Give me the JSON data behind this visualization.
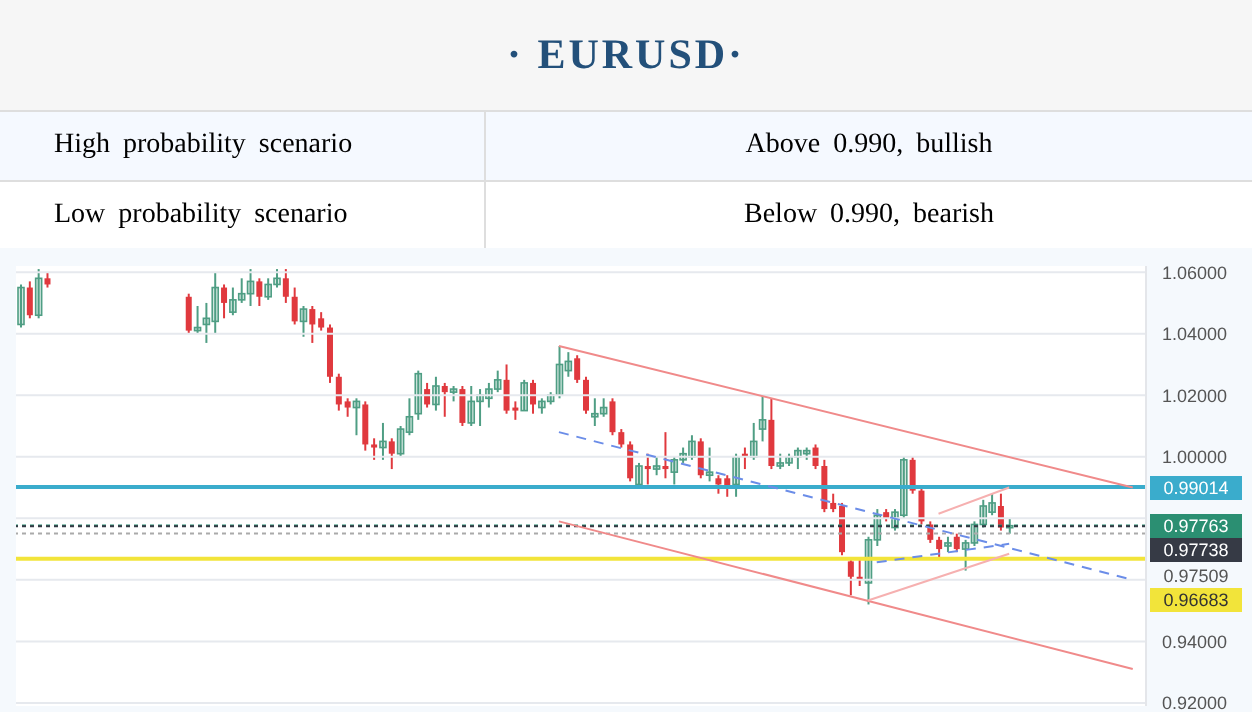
{
  "chart_data": {
    "type": "candlestick",
    "title": "· EURUSD·",
    "annotations": [
      "High probability scenario",
      "Above 0.990, bullish",
      "Low probability scenario",
      "Below 0.990, bearish"
    ],
    "categories": [
      null,
      null,
      null,
      null,
      null,
      null,
      null,
      null,
      null,
      null,
      null,
      null,
      null,
      null,
      null,
      null,
      null,
      null,
      null,
      null,
      null,
      null,
      null,
      null,
      null,
      null,
      null,
      null,
      null,
      null,
      null,
      null,
      null,
      null,
      null,
      null,
      null,
      null,
      null,
      null,
      null,
      null,
      null,
      null,
      null,
      null,
      null,
      null,
      null,
      null,
      null,
      null,
      null,
      null,
      null,
      null,
      null,
      null,
      null,
      null,
      null,
      null,
      null,
      null,
      null,
      null,
      null,
      null,
      null,
      null,
      null,
      null,
      null,
      null,
      null,
      null,
      null,
      null,
      null,
      null,
      null,
      null,
      null,
      null,
      null,
      null,
      null,
      null,
      null,
      null,
      null,
      null,
      null,
      null,
      null,
      null,
      null,
      null,
      null,
      null,
      null,
      null,
      null,
      null,
      null,
      null,
      null,
      null,
      null,
      null,
      null,
      null,
      null,
      null,
      null,
      null,
      null,
      null,
      null,
      null,
      null,
      null,
      null,
      null,
      null,
      null,
      null,
      null
    ],
    "colors": [
      "#4f9e84",
      "#e0393e",
      "#4f9e84",
      "#e0393e",
      null,
      null,
      null,
      null,
      null,
      null,
      null,
      null,
      null,
      null,
      null,
      null,
      null,
      null,
      null,
      "#e0393e",
      "#4f9e84",
      "#4f9e84",
      "#4f9e84",
      "#e0393e",
      "#4f9e84",
      "#4f9e84",
      "#4f9e84",
      "#e0393e",
      "#4f9e84",
      "#4f9e84",
      "#e0393e",
      "#e0393e",
      "#4f9e84",
      "#e0393e",
      "#e0393e",
      "#e0393e",
      "#e0393e",
      "#e0393e",
      "#4f9e84",
      "#e0393e",
      "#e0393e",
      "#4f9e84",
      "#e0393e",
      "#4f9e84",
      "#4f9e84",
      "#4f9e84",
      "#e0393e",
      "#4f9e84",
      "#e0393e",
      "#4f9e84",
      "#e0393e",
      "#4f9e84",
      "#4f9e84",
      "#4f9e84",
      "#4f9e84",
      "#e0393e",
      "#e0393e",
      "#4f9e84",
      "#e0393e",
      "#4f9e84",
      "#4f9e84",
      "#4f9e84",
      "#4f9e84",
      "#e0393e",
      "#e0393e",
      "#4f9e84",
      "#4f9e84",
      "#e0393e",
      "#e0393e",
      "#e0393e",
      "#4f9e84",
      "#e0393e",
      "#4f9e84",
      "#e0393e",
      "#4f9e84",
      "#4f9e84",
      "#4f9e84",
      "#e0393e",
      "#4f9e84",
      "#e0393e",
      "#e0393e",
      "#4f9e84",
      "#e0393e",
      "#4f9e84",
      "#4f9e84",
      "#e0393e",
      "#4f9e84",
      "#4f9e84",
      "#4f9e84",
      "#4f9e84",
      "#e0393e",
      "#e0393e",
      "#e0393e",
      "#e0393e",
      "#e0393e",
      "#e0393e",
      "#4f9e84",
      "#4f9e84",
      "#e0393e",
      "#4f9e84",
      "#4f9e84",
      "#e0393e",
      "#e0393e",
      "#e0393e",
      "#e0393e",
      "#4f9e84",
      "#e0393e",
      "#4f9e84",
      "#4f9e84",
      "#4f9e84",
      "#4f9e84",
      "#e0393e",
      "#4f9e84",
      null,
      null,
      null,
      null,
      null,
      null,
      null,
      null,
      null,
      null,
      null,
      null,
      null,
      null,
      null
    ],
    "ohlc": [
      [
        1.043,
        1.056,
        1.042,
        1.055
      ],
      [
        1.055,
        1.057,
        1.045,
        1.046
      ],
      [
        1.046,
        1.061,
        1.045,
        1.058
      ],
      [
        1.058,
        1.06,
        1.055,
        1.056
      ],
      null,
      null,
      null,
      null,
      null,
      null,
      null,
      null,
      null,
      null,
      null,
      null,
      null,
      null,
      null,
      [
        1.052,
        1.053,
        1.04,
        1.041
      ],
      [
        1.041,
        1.049,
        1.04,
        1.042
      ],
      [
        1.043,
        1.05,
        1.037,
        1.045
      ],
      [
        1.044,
        1.06,
        1.04,
        1.055
      ],
      [
        1.055,
        1.056,
        1.045,
        1.05
      ],
      [
        1.047,
        1.055,
        1.046,
        1.051
      ],
      [
        1.051,
        1.058,
        1.05,
        1.053
      ],
      [
        1.053,
        1.061,
        1.049,
        1.057
      ],
      [
        1.057,
        1.058,
        1.049,
        1.052
      ],
      [
        1.052,
        1.058,
        1.051,
        1.056
      ],
      [
        1.056,
        1.061,
        1.055,
        1.058
      ],
      [
        1.058,
        1.061,
        1.05,
        1.052
      ],
      [
        1.052,
        1.055,
        1.043,
        1.044
      ],
      [
        1.044,
        1.049,
        1.039,
        1.048
      ],
      [
        1.048,
        1.049,
        1.037,
        1.043
      ],
      [
        1.045,
        1.047,
        1.041,
        1.042
      ],
      [
        1.042,
        1.043,
        1.024,
        1.026
      ],
      [
        1.026,
        1.027,
        1.015,
        1.017
      ],
      [
        1.018,
        1.019,
        1.013,
        1.016
      ],
      [
        1.016,
        1.019,
        1.007,
        1.018
      ],
      [
        1.017,
        1.018,
        1.002,
        1.004
      ],
      [
        1.004,
        1.006,
        0.999,
        1.003
      ],
      [
        1.003,
        1.011,
        0.999,
        1.005
      ],
      [
        1.005,
        1.006,
        0.996,
        1.001
      ],
      [
        1.001,
        1.01,
        1.0,
        1.009
      ],
      [
        1.008,
        1.019,
        1.007,
        1.013
      ],
      [
        1.014,
        1.028,
        1.012,
        1.027
      ],
      [
        1.022,
        1.024,
        1.016,
        1.017
      ],
      [
        1.017,
        1.026,
        1.015,
        1.023
      ],
      [
        1.023,
        1.024,
        1.013,
        1.021
      ],
      [
        1.021,
        1.023,
        1.018,
        1.022
      ],
      [
        1.022,
        1.023,
        1.01,
        1.011
      ],
      [
        1.011,
        1.023,
        1.01,
        1.018
      ],
      [
        1.018,
        1.022,
        1.01,
        1.02
      ],
      [
        1.019,
        1.024,
        1.016,
        1.022
      ],
      [
        1.022,
        1.028,
        1.021,
        1.025
      ],
      [
        1.025,
        1.03,
        1.014,
        1.015
      ],
      [
        1.016,
        1.018,
        1.012,
        1.015
      ],
      [
        1.015,
        1.025,
        1.015,
        1.024
      ],
      [
        1.024,
        1.025,
        1.014,
        1.017
      ],
      [
        1.016,
        1.019,
        1.014,
        1.018
      ],
      [
        1.018,
        1.021,
        1.017,
        1.02
      ],
      [
        1.02,
        1.036,
        1.019,
        1.03
      ],
      [
        1.028,
        1.034,
        1.026,
        1.031
      ],
      [
        1.032,
        1.033,
        1.024,
        1.025
      ],
      [
        1.025,
        1.026,
        1.014,
        1.015
      ],
      [
        1.013,
        1.019,
        1.01,
        1.014
      ],
      [
        1.014,
        1.019,
        1.013,
        1.016
      ],
      [
        1.018,
        1.019,
        1.007,
        1.008
      ],
      [
        1.008,
        1.009,
        1.003,
        1.004
      ],
      [
        1.004,
        1.005,
        0.992,
        0.993
      ],
      [
        0.991,
        0.998,
        0.99,
        0.997
      ],
      [
        0.997,
        1.001,
        0.991,
        0.996
      ],
      [
        0.996,
        1.0,
        0.994,
        0.997
      ],
      [
        0.997,
        1.008,
        0.993,
        0.996
      ],
      [
        0.995,
        1.0,
        0.991,
        0.999
      ],
      [
        0.999,
        1.003,
        0.998,
        1.001
      ],
      [
        1.0,
        1.007,
        0.999,
        1.005
      ],
      [
        1.005,
        1.006,
        0.993,
        0.994
      ],
      [
        0.994,
        1.003,
        0.992,
        0.995
      ],
      [
        0.993,
        0.994,
        0.988,
        0.991
      ],
      [
        0.993,
        0.994,
        0.987,
        0.99
      ],
      [
        0.991,
        1.001,
        0.987,
        1.0
      ],
      [
        1.001,
        1.003,
        0.996,
        1.0
      ],
      [
        1.0,
        1.011,
        0.999,
        1.005
      ],
      [
        1.009,
        1.02,
        1.005,
        1.012
      ],
      [
        1.012,
        1.019,
        0.996,
        0.997
      ],
      [
        0.997,
        1.001,
        0.996,
        0.998
      ],
      [
        0.998,
        1.001,
        0.997,
        1.0
      ],
      [
        1.0,
        1.003,
        0.996,
        1.002
      ],
      [
        1.001,
        1.003,
        0.999,
        1.002
      ],
      [
        1.003,
        1.004,
        0.996,
        0.997
      ],
      [
        0.997,
        0.999,
        0.982,
        0.983
      ],
      [
        0.985,
        0.988,
        0.982,
        0.983
      ],
      [
        0.984,
        0.985,
        0.968,
        0.969
      ],
      [
        0.966,
        0.967,
        0.955,
        0.961
      ],
      [
        0.961,
        0.967,
        0.958,
        0.96
      ],
      [
        0.959,
        0.974,
        0.952,
        0.973
      ],
      [
        0.973,
        0.983,
        0.971,
        0.981
      ],
      [
        0.982,
        0.983,
        0.979,
        0.98
      ],
      [
        0.977,
        0.983,
        0.976,
        0.982
      ],
      [
        0.981,
        1.0,
        0.98,
        0.999
      ],
      [
        0.999,
        1.0,
        0.988,
        0.989
      ],
      [
        0.989,
        0.99,
        0.978,
        0.979
      ],
      [
        0.978,
        0.979,
        0.972,
        0.973
      ],
      [
        0.973,
        0.974,
        0.967,
        0.97
      ],
      [
        0.971,
        0.974,
        0.969,
        0.972
      ],
      [
        0.974,
        0.975,
        0.969,
        0.97
      ],
      [
        0.97,
        0.973,
        0.963,
        0.972
      ],
      [
        0.972,
        0.979,
        0.971,
        0.978
      ],
      [
        0.978,
        0.986,
        0.977,
        0.984
      ],
      [
        0.982,
        0.988,
        0.981,
        0.985
      ],
      [
        0.984,
        0.988,
        0.976,
        0.977
      ],
      [
        0.977,
        0.98,
        0.975,
        0.9776
      ],
      null,
      null,
      null,
      null,
      null,
      null,
      null,
      null,
      null,
      null,
      null,
      null,
      null,
      null,
      null
    ],
    "series": [
      {
        "type": "line",
        "color": "#f08a8a",
        "line_style": "solid",
        "values": [
          null,
          null,
          null,
          null,
          null,
          null,
          null,
          null,
          null,
          null,
          null,
          null,
          null,
          null,
          null,
          null,
          null,
          null,
          null,
          null,
          null,
          null,
          null,
          null,
          null,
          null,
          null,
          null,
          null,
          null,
          null,
          null,
          null,
          null,
          null,
          null,
          null,
          null,
          null,
          null,
          null,
          null,
          null,
          null,
          null,
          null,
          null,
          null,
          null,
          null,
          null,
          null,
          null,
          null,
          null,
          null,
          null,
          null,
          null,
          null,
          null,
          1.036,
          null,
          null,
          null,
          null,
          null,
          null,
          null,
          null,
          null,
          null,
          null,
          null,
          null,
          null,
          null,
          null,
          null,
          null,
          null,
          null,
          null,
          null,
          null,
          null,
          null,
          null,
          null,
          null,
          null,
          null,
          null,
          null,
          null,
          null,
          null,
          null,
          null,
          null,
          null,
          null,
          null,
          null,
          null,
          null,
          null,
          null,
          null,
          null,
          null,
          null,
          null,
          null,
          null,
          null,
          null,
          null,
          null,
          null,
          null,
          null,
          null,
          null,
          null,
          null,
          0.99,
          null
        ]
      },
      {
        "type": "line",
        "color": "#f08a8a",
        "line_style": "solid",
        "values": [
          null,
          null,
          null,
          null,
          null,
          null,
          null,
          null,
          null,
          null,
          null,
          null,
          null,
          null,
          null,
          null,
          null,
          null,
          null,
          null,
          null,
          null,
          null,
          null,
          null,
          null,
          null,
          null,
          null,
          null,
          null,
          null,
          null,
          null,
          null,
          null,
          null,
          null,
          null,
          null,
          null,
          null,
          null,
          null,
          null,
          null,
          null,
          null,
          null,
          null,
          null,
          null,
          null,
          null,
          null,
          null,
          null,
          null,
          null,
          null,
          null,
          0.979,
          null,
          null,
          null,
          null,
          null,
          null,
          null,
          null,
          null,
          null,
          null,
          null,
          null,
          null,
          null,
          null,
          null,
          null,
          null,
          null,
          null,
          null,
          null,
          null,
          null,
          null,
          null,
          null,
          null,
          null,
          null,
          null,
          null,
          null,
          null,
          null,
          null,
          null,
          null,
          null,
          null,
          null,
          null,
          null,
          null,
          null,
          null,
          null,
          null,
          null,
          null,
          null,
          null,
          null,
          null,
          null,
          null,
          null,
          null,
          null,
          null,
          null,
          null,
          null,
          0.931,
          null
        ]
      },
      {
        "type": "line",
        "color": "#6b8de8",
        "line_style": "dashed",
        "values": [
          null,
          null,
          null,
          null,
          null,
          null,
          null,
          null,
          null,
          null,
          null,
          null,
          null,
          null,
          null,
          null,
          null,
          null,
          null,
          null,
          null,
          null,
          null,
          null,
          null,
          null,
          null,
          null,
          null,
          null,
          null,
          null,
          null,
          null,
          null,
          null,
          null,
          null,
          null,
          null,
          null,
          null,
          null,
          null,
          null,
          null,
          null,
          null,
          null,
          null,
          null,
          null,
          null,
          null,
          null,
          null,
          null,
          null,
          null,
          null,
          null,
          1.008,
          null,
          null,
          null,
          null,
          null,
          null,
          null,
          null,
          null,
          null,
          null,
          null,
          null,
          null,
          null,
          null,
          null,
          null,
          null,
          null,
          null,
          null,
          null,
          null,
          null,
          null,
          null,
          null,
          null,
          null,
          null,
          null,
          null,
          null,
          null,
          null,
          null,
          null,
          null,
          null,
          null,
          null,
          null,
          null,
          null,
          null,
          null,
          null,
          null,
          null,
          null,
          null,
          null,
          null,
          null,
          null,
          null,
          null,
          null,
          null,
          null,
          null,
          null,
          null,
          0.96,
          null
        ]
      },
      {
        "type": "line",
        "color": "#f6b0b0",
        "line_style": "solid",
        "values": [
          null,
          null,
          null,
          null,
          null,
          null,
          null,
          null,
          null,
          null,
          null,
          null,
          null,
          null,
          null,
          null,
          null,
          null,
          null,
          null,
          null,
          null,
          null,
          null,
          null,
          null,
          null,
          null,
          null,
          null,
          null,
          null,
          null,
          null,
          null,
          null,
          null,
          null,
          null,
          null,
          null,
          null,
          null,
          null,
          null,
          null,
          null,
          null,
          null,
          null,
          null,
          null,
          null,
          null,
          null,
          null,
          null,
          null,
          null,
          null,
          null,
          null,
          null,
          null,
          null,
          null,
          null,
          null,
          null,
          null,
          null,
          null,
          null,
          null,
          null,
          null,
          null,
          null,
          null,
          null,
          null,
          null,
          null,
          null,
          null,
          null,
          null,
          null,
          null,
          null,
          null,
          null,
          null,
          null,
          null,
          null,
          null,
          null,
          null,
          null,
          null,
          null,
          null,
          null,
          0.9815,
          null,
          null,
          null,
          null,
          null,
          null,
          null,
          0.99,
          null,
          null,
          null,
          null,
          null,
          null,
          null,
          null,
          null,
          null,
          null,
          null,
          null,
          null,
          null
        ]
      },
      {
        "type": "line",
        "color": "#f6b0b0",
        "line_style": "solid",
        "values": [
          null,
          null,
          null,
          null,
          null,
          null,
          null,
          null,
          null,
          null,
          null,
          null,
          null,
          null,
          null,
          null,
          null,
          null,
          null,
          null,
          null,
          null,
          null,
          null,
          null,
          null,
          null,
          null,
          null,
          null,
          null,
          null,
          null,
          null,
          null,
          null,
          null,
          null,
          null,
          null,
          null,
          null,
          null,
          null,
          null,
          null,
          null,
          null,
          null,
          null,
          null,
          null,
          null,
          null,
          null,
          null,
          null,
          null,
          null,
          null,
          null,
          null,
          null,
          null,
          null,
          null,
          null,
          null,
          null,
          null,
          null,
          null,
          null,
          null,
          null,
          null,
          null,
          null,
          null,
          null,
          null,
          null,
          null,
          null,
          null,
          null,
          null,
          null,
          null,
          null,
          null,
          null,
          null,
          null,
          null,
          null,
          0.9533,
          null,
          null,
          null,
          null,
          null,
          null,
          null,
          null,
          null,
          null,
          null,
          null,
          null,
          null,
          null,
          0.9685,
          null,
          null,
          null,
          null,
          null,
          null,
          null,
          null,
          null,
          null,
          null,
          null,
          null,
          null,
          null
        ]
      },
      {
        "type": "line",
        "color": "#6b8de8",
        "line_style": "dashed",
        "values": [
          null,
          null,
          null,
          null,
          null,
          null,
          null,
          null,
          null,
          null,
          null,
          null,
          null,
          null,
          null,
          null,
          null,
          null,
          null,
          null,
          null,
          null,
          null,
          null,
          null,
          null,
          null,
          null,
          null,
          null,
          null,
          null,
          null,
          null,
          null,
          null,
          null,
          null,
          null,
          null,
          null,
          null,
          null,
          null,
          null,
          null,
          null,
          null,
          null,
          null,
          null,
          null,
          null,
          null,
          null,
          null,
          null,
          null,
          null,
          null,
          null,
          null,
          null,
          null,
          null,
          null,
          null,
          null,
          null,
          null,
          null,
          null,
          null,
          null,
          null,
          null,
          null,
          null,
          null,
          null,
          null,
          null,
          null,
          null,
          null,
          null,
          null,
          null,
          null,
          null,
          null,
          null,
          null,
          null,
          null,
          null,
          null,
          0.9657,
          null,
          null,
          null,
          null,
          null,
          null,
          null,
          null,
          null,
          null,
          null,
          null,
          null,
          null,
          0.9717,
          null,
          null,
          null,
          null,
          null,
          null,
          null,
          null,
          null,
          null,
          null,
          null,
          null,
          null,
          null
        ]
      }
    ],
    "ref_lines": [
      {
        "axis": "y",
        "value": 0.99014,
        "label": "0.99014",
        "color": "#3aaccc",
        "line_style": "solid"
      },
      {
        "axis": "y",
        "value": 0.97763,
        "label": "0.97763",
        "color": "#2b8f72",
        "line_style": "dotted"
      },
      {
        "axis": "y",
        "value": 0.97738,
        "label": "0.97738",
        "color": "#363a45",
        "line_style": "dotted"
      },
      {
        "axis": "y",
        "value": 0.97509,
        "label": "0.97509",
        "line_style": "dotted"
      },
      {
        "axis": "y",
        "value": 0.96683,
        "label": "0.96683",
        "color": "#f2e43a",
        "line_style": "solid"
      }
    ],
    "ylim": [
      0.919,
      1.062
    ],
    "yticks": [
      {
        "value": 0.92,
        "label": "0.92000"
      },
      {
        "value": 0.94,
        "label": "0.94000"
      },
      {
        "value": 0.96,
        "label": null
      },
      {
        "value": 0.98,
        "label": null
      },
      {
        "value": 1.0,
        "label": "1.00000"
      },
      {
        "value": 1.02,
        "label": "1.02000"
      },
      {
        "value": 1.04,
        "label": "1.04000"
      },
      {
        "value": 1.06,
        "label": "1.06000"
      }
    ],
    "grid": "y",
    "tick_labels": "y"
  }
}
